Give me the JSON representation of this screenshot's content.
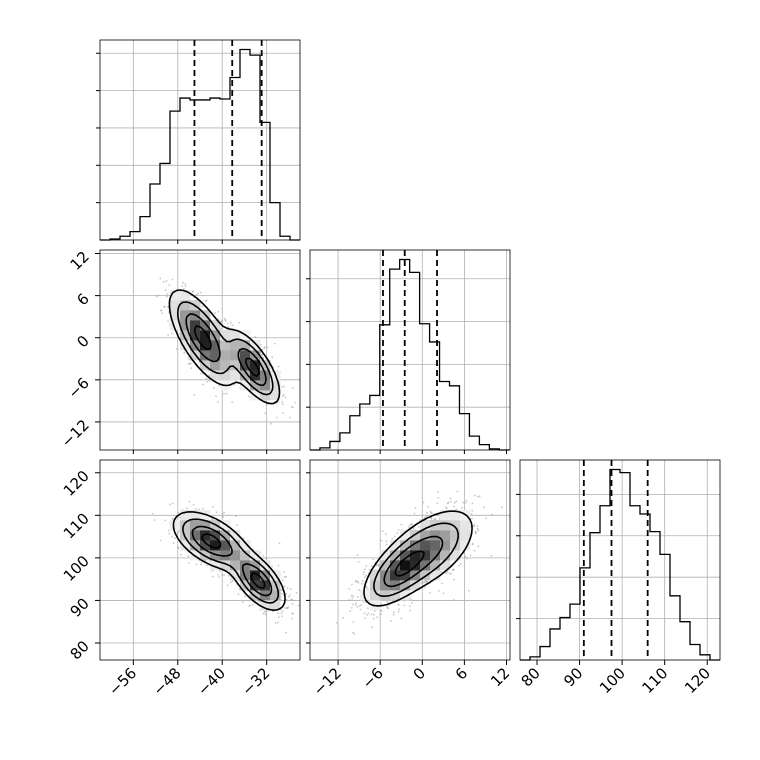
{
  "chart_data": {
    "type": "corner",
    "grid": true,
    "quantile_lines": "dashed",
    "params": [
      {
        "range": [
          -62,
          -26
        ],
        "ticks": [
          "−56",
          "−48",
          "−40",
          "−32"
        ],
        "tick_values": [
          -56,
          -48,
          -40,
          -32
        ],
        "quantiles": [
          -45.0,
          -38.2,
          -32.9
        ],
        "hist": {
          "edges": [
            -62,
            -60.2,
            -58.4,
            -56.6,
            -54.8,
            -53,
            -51.2,
            -49.4,
            -47.6,
            -45.8,
            -44,
            -42.2,
            -40.4,
            -38.6,
            -36.8,
            -35,
            -33.2,
            -31.4,
            -29.6,
            -27.8,
            -26
          ],
          "counts": [
            0,
            5,
            20,
            45,
            125,
            300,
            410,
            690,
            760,
            750,
            750,
            760,
            755,
            870,
            1020,
            990,
            630,
            200,
            20,
            0
          ]
        }
      },
      {
        "range": [
          -16,
          12.5
        ],
        "ticks": [
          "−12",
          "−6",
          "0",
          "6",
          "12"
        ],
        "tick_values": [
          -12,
          -6,
          0,
          6,
          12
        ],
        "quantiles": [
          -5.6,
          -2.5,
          2.1
        ],
        "hist": {
          "edges": [
            -16,
            -14.58,
            -13.16,
            -11.74,
            -10.32,
            -8.9,
            -7.48,
            -6.06,
            -4.64,
            -3.22,
            -1.8,
            -0.38,
            1.04,
            2.46,
            3.88,
            5.3,
            6.72,
            8.14,
            9.56,
            10.98,
            12.4
          ],
          "counts": [
            0,
            10,
            40,
            80,
            160,
            215,
            255,
            585,
            845,
            890,
            830,
            590,
            505,
            320,
            300,
            170,
            65,
            25,
            5,
            0
          ]
        }
      },
      {
        "range": [
          76,
          123
        ],
        "ticks": [
          "80",
          "90",
          "100",
          "110",
          "120"
        ],
        "tick_values": [
          80,
          90,
          100,
          110,
          120
        ],
        "quantiles": [
          91.0,
          97.5,
          106.0
        ],
        "hist": {
          "edges": [
            76,
            78.35,
            80.7,
            83.05,
            85.4,
            87.75,
            90.1,
            92.45,
            94.8,
            97.15,
            99.5,
            101.85,
            104.2,
            106.55,
            108.9,
            111.25,
            113.6,
            115.95,
            118.3,
            120.65,
            123
          ],
          "counts": [
            0,
            15,
            65,
            150,
            205,
            270,
            445,
            615,
            745,
            920,
            905,
            745,
            705,
            620,
            510,
            310,
            185,
            75,
            25,
            0
          ]
        }
      }
    ],
    "pairs": [
      {
        "x_param": 0,
        "y_param": 1,
        "modes": [
          {
            "mean": [
              -43.5,
              0.0
            ],
            "sd": [
              3.0,
              3.4
            ],
            "rho": -0.7
          },
          {
            "mean": [
              -34.5,
              -4.2
            ],
            "sd": [
              2.4,
              2.6
            ],
            "rho": -0.7
          }
        ],
        "contour_levels": [
          0.5,
          1.0,
          1.5,
          2.0
        ]
      },
      {
        "x_param": 0,
        "y_param": 2,
        "modes": [
          {
            "mean": [
              -42.0,
              104.0
            ],
            "sd": [
              3.4,
              3.4
            ],
            "rho": -0.55
          },
          {
            "mean": [
              -33.5,
              94.5
            ],
            "sd": [
              2.4,
              3.4
            ],
            "rho": -0.6
          }
        ],
        "contour_levels": [
          0.5,
          1.0,
          1.5,
          2.0
        ]
      },
      {
        "x_param": 1,
        "y_param": 2,
        "modes": [
          {
            "mean": [
              -3.5,
              96.5
            ],
            "sd": [
              2.6,
              4.2
            ],
            "rho": 0.62
          },
          {
            "mean": [
              1.0,
              102.0
            ],
            "sd": [
              3.4,
              5.0
            ],
            "rho": 0.55
          }
        ],
        "contour_levels": [
          0.5,
          1.0,
          1.5,
          2.0
        ]
      }
    ]
  }
}
